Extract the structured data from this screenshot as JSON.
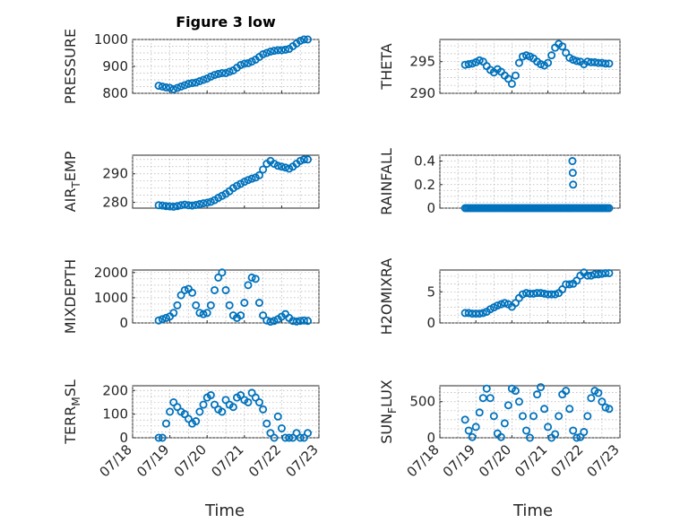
{
  "figure": {
    "title": "Figure 3 low",
    "x_tick_labels": [
      "07/18",
      "07/19",
      "07/20",
      "07/21",
      "07/22",
      "07/23"
    ],
    "xlabel": "Time",
    "marker_color": "#0072BD"
  },
  "chart_data": [
    {
      "id": "pressure",
      "type": "scatter",
      "title": "Figure 3 low",
      "ylabel": "PRESSURE",
      "ylim": [
        800,
        1000
      ],
      "yticks": [
        800,
        900,
        1000
      ],
      "xlim": [
        "07/18",
        "07/23"
      ],
      "x_days": [
        0.7,
        0.8,
        0.9,
        1.0,
        1.1,
        1.2,
        1.3,
        1.4,
        1.5,
        1.6,
        1.7,
        1.8,
        1.9,
        2.0,
        2.1,
        2.2,
        2.3,
        2.4,
        2.5,
        2.6,
        2.7,
        2.8,
        2.9,
        3.0,
        3.1,
        3.2,
        3.3,
        3.4,
        3.5,
        3.6,
        3.7,
        3.8,
        3.9,
        4.0,
        4.1,
        4.2,
        4.3,
        4.4,
        4.5,
        4.6,
        4.7
      ],
      "y": [
        828,
        825,
        822,
        820,
        815,
        820,
        825,
        830,
        835,
        838,
        840,
        845,
        850,
        855,
        862,
        868,
        872,
        875,
        875,
        880,
        885,
        895,
        905,
        910,
        912,
        918,
        925,
        935,
        945,
        950,
        955,
        958,
        960,
        960,
        962,
        965,
        975,
        985,
        995,
        1000,
        1000
      ]
    },
    {
      "id": "theta",
      "type": "scatter",
      "ylabel": "THETA",
      "ylim": [
        290,
        298.5
      ],
      "yticks": [
        290,
        295
      ],
      "xlim": [
        "07/18",
        "07/23"
      ],
      "x_days": [
        0.7,
        0.8,
        0.9,
        1.0,
        1.1,
        1.2,
        1.3,
        1.4,
        1.5,
        1.6,
        1.7,
        1.8,
        1.9,
        2.0,
        2.1,
        2.2,
        2.3,
        2.4,
        2.5,
        2.6,
        2.7,
        2.8,
        2.9,
        3.0,
        3.1,
        3.2,
        3.3,
        3.4,
        3.5,
        3.6,
        3.7,
        3.8,
        3.9,
        4.0,
        4.1,
        4.2,
        4.3,
        4.4,
        4.5,
        4.6,
        4.7
      ],
      "y": [
        294.5,
        294.6,
        294.7,
        294.9,
        295.2,
        295.0,
        294.3,
        293.7,
        293.3,
        293.8,
        293.4,
        292.8,
        292.3,
        291.5,
        292.8,
        294.8,
        295.8,
        296.0,
        295.8,
        295.5,
        295.0,
        294.6,
        294.4,
        294.8,
        296.0,
        297.2,
        297.8,
        297.4,
        296.4,
        295.6,
        295.3,
        295.1,
        295.0,
        294.6,
        295.0,
        294.9,
        294.9,
        294.8,
        294.8,
        294.7,
        294.7
      ]
    },
    {
      "id": "air_temp",
      "type": "scatter",
      "ylabel_main": "AIR",
      "ylabel_sub": "T",
      "ylabel_rest": "EMP",
      "ylim": [
        278,
        296.5
      ],
      "yticks": [
        280,
        290
      ],
      "xlim": [
        "07/18",
        "07/23"
      ],
      "x_days": [
        0.7,
        0.8,
        0.9,
        1.0,
        1.1,
        1.2,
        1.3,
        1.4,
        1.5,
        1.6,
        1.7,
        1.8,
        1.9,
        2.0,
        2.1,
        2.2,
        2.3,
        2.4,
        2.5,
        2.6,
        2.7,
        2.8,
        2.9,
        3.0,
        3.1,
        3.2,
        3.3,
        3.4,
        3.5,
        3.6,
        3.7,
        3.8,
        3.9,
        4.0,
        4.1,
        4.2,
        4.3,
        4.4,
        4.5,
        4.6,
        4.7
      ],
      "y": [
        279.0,
        278.9,
        278.7,
        278.6,
        278.5,
        278.7,
        279.0,
        279.2,
        279.0,
        278.9,
        279.1,
        279.4,
        279.7,
        279.9,
        280.2,
        280.8,
        281.6,
        282.3,
        283.0,
        283.9,
        285.0,
        285.8,
        286.5,
        287.2,
        287.8,
        288.3,
        288.7,
        289.5,
        291.5,
        293.5,
        294.5,
        293.5,
        292.8,
        292.5,
        292.2,
        291.8,
        292.5,
        293.5,
        294.5,
        295.0,
        295.0
      ]
    },
    {
      "id": "rainfall",
      "type": "scatter",
      "ylabel": "RAINFALL",
      "ylim": [
        0,
        0.45
      ],
      "yticks": [
        0,
        0.2,
        0.4
      ],
      "xlim": [
        "07/18",
        "07/23"
      ],
      "x_days": [
        0.7,
        0.75,
        0.8,
        0.85,
        0.9,
        0.95,
        1.0,
        1.05,
        1.1,
        1.15,
        1.2,
        1.25,
        1.3,
        1.35,
        1.4,
        1.45,
        1.5,
        1.55,
        1.6,
        1.65,
        1.7,
        1.75,
        1.8,
        1.85,
        1.9,
        1.95,
        2.0,
        2.05,
        2.1,
        2.15,
        2.2,
        2.25,
        2.3,
        2.35,
        2.4,
        2.45,
        2.5,
        2.55,
        2.6,
        2.65,
        2.7,
        2.75,
        2.8,
        2.85,
        2.9,
        2.95,
        3.0,
        3.05,
        3.1,
        3.15,
        3.2,
        3.25,
        3.3,
        3.35,
        3.4,
        3.45,
        3.5,
        3.55,
        3.6,
        3.65,
        3.7,
        3.75,
        3.8,
        3.85,
        3.9,
        3.95,
        4.0,
        4.05,
        4.1,
        4.15,
        4.2,
        4.25,
        4.3,
        4.35,
        4.4,
        4.45,
        4.5,
        4.55,
        4.6,
        4.65,
        4.7,
        3.68,
        3.69,
        3.7
      ],
      "y": [
        0,
        0,
        0,
        0,
        0,
        0,
        0,
        0,
        0,
        0,
        0,
        0,
        0,
        0,
        0,
        0,
        0,
        0,
        0,
        0,
        0,
        0,
        0,
        0,
        0,
        0,
        0,
        0,
        0,
        0,
        0,
        0,
        0,
        0,
        0,
        0,
        0,
        0,
        0,
        0,
        0,
        0,
        0,
        0,
        0,
        0,
        0,
        0,
        0,
        0,
        0,
        0,
        0,
        0,
        0,
        0,
        0,
        0,
        0,
        0,
        0,
        0,
        0,
        0,
        0,
        0,
        0,
        0,
        0,
        0,
        0,
        0,
        0,
        0,
        0,
        0,
        0,
        0,
        0,
        0,
        0,
        0.4,
        0.3,
        0.2
      ]
    },
    {
      "id": "mixdepth",
      "type": "scatter",
      "ylabel": "MIXDEPTH",
      "ylim": [
        0,
        2100
      ],
      "yticks": [
        0,
        1000,
        2000
      ],
      "xlim": [
        "07/18",
        "07/23"
      ],
      "x_days": [
        0.7,
        0.8,
        0.9,
        1.0,
        1.1,
        1.2,
        1.3,
        1.4,
        1.5,
        1.6,
        1.7,
        1.8,
        1.9,
        2.0,
        2.1,
        2.2,
        2.3,
        2.4,
        2.5,
        2.6,
        2.7,
        2.8,
        2.9,
        3.0,
        3.1,
        3.2,
        3.3,
        3.4,
        3.5,
        3.6,
        3.7,
        3.8,
        3.9,
        4.0,
        4.1,
        4.2,
        4.3,
        4.4,
        4.5,
        4.6,
        4.7
      ],
      "y": [
        100,
        150,
        200,
        260,
        400,
        700,
        1100,
        1300,
        1350,
        1200,
        700,
        400,
        350,
        400,
        700,
        1300,
        1800,
        2000,
        1300,
        700,
        300,
        200,
        300,
        800,
        1500,
        1800,
        1750,
        800,
        300,
        100,
        50,
        80,
        150,
        250,
        350,
        200,
        80,
        60,
        80,
        100,
        80
      ]
    },
    {
      "id": "h2omixra",
      "type": "scatter",
      "ylabel": "H2OMIXRA",
      "ylim": [
        0,
        8.5
      ],
      "yticks": [
        0,
        5
      ],
      "xlim": [
        "07/18",
        "07/23"
      ],
      "x_days": [
        0.7,
        0.8,
        0.9,
        1.0,
        1.1,
        1.2,
        1.3,
        1.4,
        1.5,
        1.6,
        1.7,
        1.8,
        1.9,
        2.0,
        2.1,
        2.2,
        2.3,
        2.4,
        2.5,
        2.6,
        2.7,
        2.8,
        2.9,
        3.0,
        3.1,
        3.2,
        3.3,
        3.4,
        3.5,
        3.6,
        3.7,
        3.8,
        3.9,
        4.0,
        4.1,
        4.2,
        4.3,
        4.4,
        4.5,
        4.6,
        4.7
      ],
      "y": [
        1.6,
        1.6,
        1.5,
        1.5,
        1.5,
        1.6,
        1.8,
        2.2,
        2.5,
        2.8,
        3.0,
        3.2,
        3.0,
        2.6,
        3.2,
        4.0,
        4.6,
        4.8,
        4.7,
        4.7,
        4.8,
        4.8,
        4.7,
        4.6,
        4.6,
        4.6,
        4.8,
        5.4,
        6.2,
        6.2,
        6.3,
        6.8,
        7.6,
        8.1,
        7.6,
        7.6,
        7.8,
        7.8,
        7.9,
        8.0,
        8.0
      ]
    },
    {
      "id": "terr_msl",
      "type": "scatter",
      "ylabel_main": "TERR",
      "ylabel_sub": "M",
      "ylabel_rest": "SL",
      "ylim": [
        0,
        220
      ],
      "yticks": [
        0,
        100,
        200
      ],
      "xlim": [
        "07/18",
        "07/23"
      ],
      "x_days": [
        0.7,
        0.8,
        0.9,
        1.0,
        1.1,
        1.2,
        1.3,
        1.4,
        1.5,
        1.6,
        1.7,
        1.8,
        1.9,
        2.0,
        2.1,
        2.2,
        2.3,
        2.4,
        2.5,
        2.6,
        2.7,
        2.8,
        2.9,
        3.0,
        3.1,
        3.2,
        3.3,
        3.4,
        3.5,
        3.6,
        3.7,
        3.8,
        3.9,
        4.0,
        4.1,
        4.2,
        4.3,
        4.4,
        4.5,
        4.6,
        4.7
      ],
      "y": [
        0,
        0,
        60,
        110,
        150,
        130,
        110,
        100,
        80,
        60,
        70,
        110,
        140,
        170,
        180,
        140,
        120,
        110,
        160,
        140,
        130,
        170,
        180,
        160,
        150,
        190,
        170,
        150,
        120,
        60,
        20,
        0,
        90,
        40,
        0,
        0,
        0,
        20,
        0,
        0,
        20
      ]
    },
    {
      "id": "sun_flux",
      "type": "scatter",
      "ylabel_main": "SUN",
      "ylabel_sub": "F",
      "ylabel_rest": "LUX",
      "ylim": [
        0,
        720
      ],
      "yticks": [
        0,
        500
      ],
      "xlim": [
        "07/18",
        "07/23"
      ],
      "x_days": [
        0.7,
        0.8,
        0.9,
        1.0,
        1.1,
        1.2,
        1.3,
        1.4,
        1.5,
        1.6,
        1.7,
        1.8,
        1.9,
        2.0,
        2.1,
        2.2,
        2.3,
        2.4,
        2.5,
        2.6,
        2.7,
        2.8,
        2.9,
        3.0,
        3.1,
        3.2,
        3.3,
        3.4,
        3.5,
        3.6,
        3.7,
        3.8,
        3.9,
        4.0,
        4.1,
        4.2,
        4.3,
        4.4,
        4.5,
        4.6,
        4.7
      ],
      "y": [
        250,
        100,
        10,
        150,
        350,
        550,
        680,
        550,
        300,
        60,
        10,
        200,
        450,
        680,
        650,
        500,
        300,
        100,
        0,
        300,
        600,
        700,
        400,
        150,
        0,
        50,
        300,
        600,
        650,
        400,
        100,
        0,
        10,
        80,
        300,
        550,
        650,
        620,
        500,
        420,
        400
      ]
    }
  ]
}
